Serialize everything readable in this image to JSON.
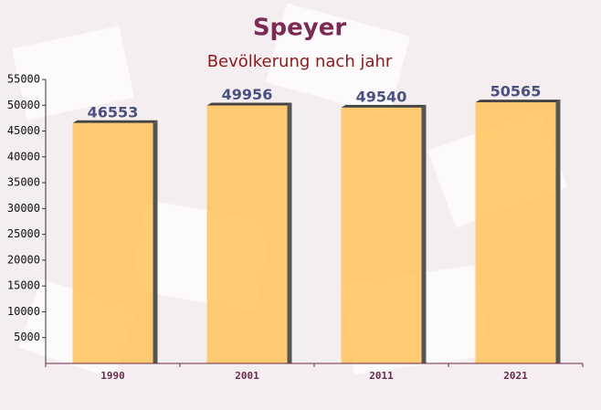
{
  "chart_data": {
    "type": "bar",
    "title": "Speyer",
    "subtitle": "Bevölkerung nach jahr",
    "categories": [
      "1990",
      "2001",
      "2011",
      "2021"
    ],
    "values": [
      46553,
      49956,
      49540,
      50565
    ],
    "color": "#ffc35a",
    "ylim": [
      0,
      55000
    ],
    "yticks": [
      5000,
      10000,
      15000,
      20000,
      25000,
      30000,
      35000,
      40000,
      45000,
      50000,
      55000
    ]
  }
}
